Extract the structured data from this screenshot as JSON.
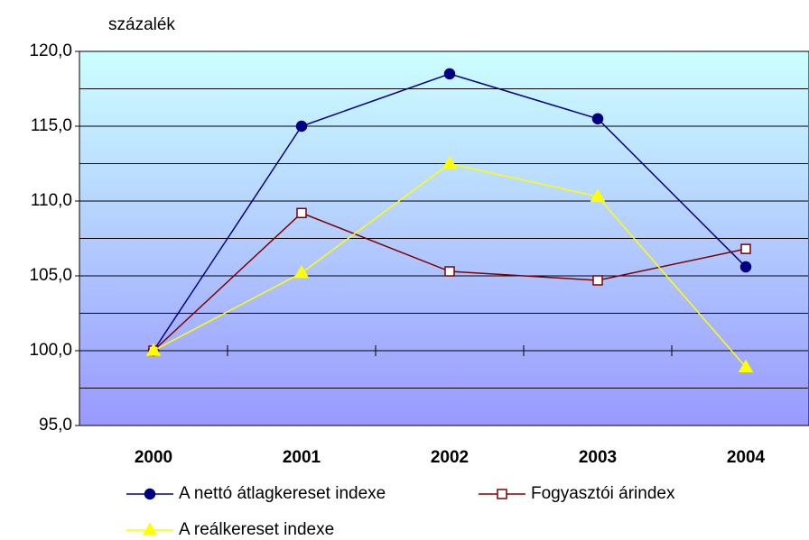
{
  "chart_data": {
    "type": "line",
    "y_label": "százalék",
    "categories": [
      "2000",
      "2001",
      "2002",
      "2003",
      "2004"
    ],
    "series": [
      {
        "name": "A nettó átlagkereset indexe",
        "color": "#000080",
        "marker": "circle",
        "values": [
          100.0,
          115.0,
          118.5,
          115.5,
          105.6
        ]
      },
      {
        "name": "Fogyasztói árindex",
        "color": "#800000",
        "marker": "square",
        "values": [
          100.0,
          109.2,
          105.3,
          104.7,
          106.8
        ]
      },
      {
        "name": "A reálkereset indexe",
        "color": "#ffff00",
        "marker": "triangle",
        "values": [
          100.0,
          105.2,
          112.5,
          110.3,
          98.9
        ]
      }
    ],
    "ylim": [
      95,
      120
    ],
    "yticks": [
      {
        "value": 95,
        "label": "95,0"
      },
      {
        "value": 100,
        "label": "100,0"
      },
      {
        "value": 105,
        "label": "105,0"
      },
      {
        "value": 110,
        "label": "110,0"
      },
      {
        "value": 115,
        "label": "115,0"
      },
      {
        "value": 120,
        "label": "120,0"
      }
    ],
    "minor_grid": [
      97.5,
      102.5,
      107.5,
      112.5,
      117.5
    ],
    "x_axis_crosses": 100,
    "grid": true,
    "legend": "bottom"
  }
}
